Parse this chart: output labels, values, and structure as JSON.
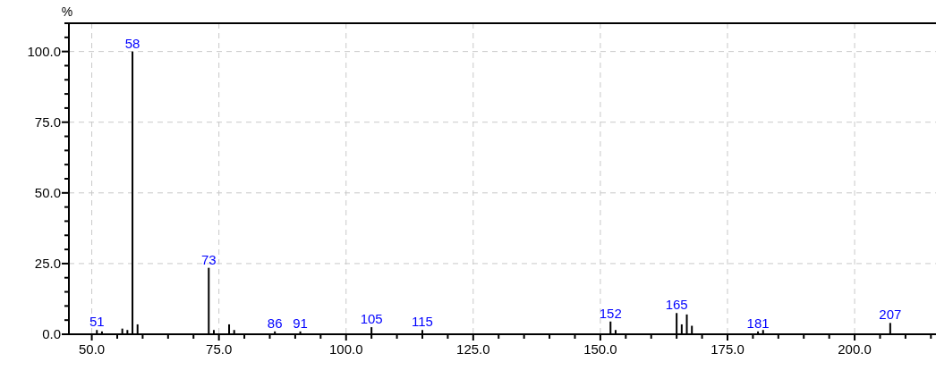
{
  "chart_data": {
    "type": "bar",
    "ylabel": "%",
    "x": [
      51,
      52,
      56,
      57,
      58,
      59,
      73,
      74,
      77,
      78,
      86,
      91,
      105,
      115,
      152,
      153,
      165,
      166,
      167,
      168,
      181,
      182,
      207
    ],
    "values": [
      1.5,
      1,
      2,
      1.5,
      100,
      3.5,
      23.5,
      1.5,
      3.5,
      1.5,
      1,
      1,
      2.5,
      1.5,
      4.5,
      1.5,
      7.5,
      3.5,
      7,
      3,
      1,
      1.5,
      4
    ],
    "color": "#000000",
    "xlim": [
      45.5,
      216
    ],
    "ylim": [
      0,
      110
    ],
    "xticks": [
      {
        "value": 50,
        "label": "50.0"
      },
      {
        "value": 55,
        "label": null
      },
      {
        "value": 60,
        "label": null
      },
      {
        "value": 65,
        "label": null
      },
      {
        "value": 70,
        "label": null
      },
      {
        "value": 75,
        "label": "75.0"
      },
      {
        "value": 80,
        "label": null
      },
      {
        "value": 85,
        "label": null
      },
      {
        "value": 90,
        "label": null
      },
      {
        "value": 95,
        "label": null
      },
      {
        "value": 100,
        "label": "100.0"
      },
      {
        "value": 105,
        "label": null
      },
      {
        "value": 110,
        "label": null
      },
      {
        "value": 115,
        "label": null
      },
      {
        "value": 120,
        "label": null
      },
      {
        "value": 125,
        "label": "125.0"
      },
      {
        "value": 130,
        "label": null
      },
      {
        "value": 135,
        "label": null
      },
      {
        "value": 140,
        "label": null
      },
      {
        "value": 145,
        "label": null
      },
      {
        "value": 150,
        "label": "150.0"
      },
      {
        "value": 155,
        "label": null
      },
      {
        "value": 160,
        "label": null
      },
      {
        "value": 165,
        "label": null
      },
      {
        "value": 170,
        "label": null
      },
      {
        "value": 175,
        "label": "175.0"
      },
      {
        "value": 180,
        "label": null
      },
      {
        "value": 185,
        "label": null
      },
      {
        "value": 190,
        "label": null
      },
      {
        "value": 195,
        "label": null
      },
      {
        "value": 200,
        "label": "200.0"
      },
      {
        "value": 205,
        "label": null
      },
      {
        "value": 210,
        "label": null
      },
      {
        "value": 215,
        "label": null
      }
    ],
    "yticks": [
      {
        "value": 0,
        "label": "0.0"
      },
      {
        "value": 5,
        "label": null
      },
      {
        "value": 10,
        "label": null
      },
      {
        "value": 15,
        "label": null
      },
      {
        "value": 20,
        "label": null
      },
      {
        "value": 25,
        "label": "25.0"
      },
      {
        "value": 30,
        "label": null
      },
      {
        "value": 35,
        "label": null
      },
      {
        "value": 40,
        "label": null
      },
      {
        "value": 45,
        "label": null
      },
      {
        "value": 50,
        "label": "50.0"
      },
      {
        "value": 55,
        "label": null
      },
      {
        "value": 60,
        "label": null
      },
      {
        "value": 65,
        "label": null
      },
      {
        "value": 70,
        "label": null
      },
      {
        "value": 75,
        "label": "75.0"
      },
      {
        "value": 80,
        "label": null
      },
      {
        "value": 85,
        "label": null
      },
      {
        "value": 90,
        "label": null
      },
      {
        "value": 95,
        "label": null
      },
      {
        "value": 100,
        "label": "100.0"
      },
      {
        "value": 105,
        "label": null
      },
      {
        "value": 110,
        "label": null
      }
    ],
    "grid": true,
    "annotations": [
      {
        "text": "51",
        "x": 51,
        "y": 1.5
      },
      {
        "text": "58",
        "x": 58,
        "y": 100
      },
      {
        "text": "73",
        "x": 73,
        "y": 23.5
      },
      {
        "text": "86",
        "x": 86,
        "y": 1
      },
      {
        "text": "91",
        "x": 91,
        "y": 1
      },
      {
        "text": "105",
        "x": 105,
        "y": 2.5
      },
      {
        "text": "115",
        "x": 115,
        "y": 1.5
      },
      {
        "text": "152",
        "x": 152,
        "y": 4.5
      },
      {
        "text": "165",
        "x": 165,
        "y": 7.5
      },
      {
        "text": "181",
        "x": 181,
        "y": 1
      },
      {
        "text": "207",
        "x": 207,
        "y": 4
      }
    ]
  }
}
